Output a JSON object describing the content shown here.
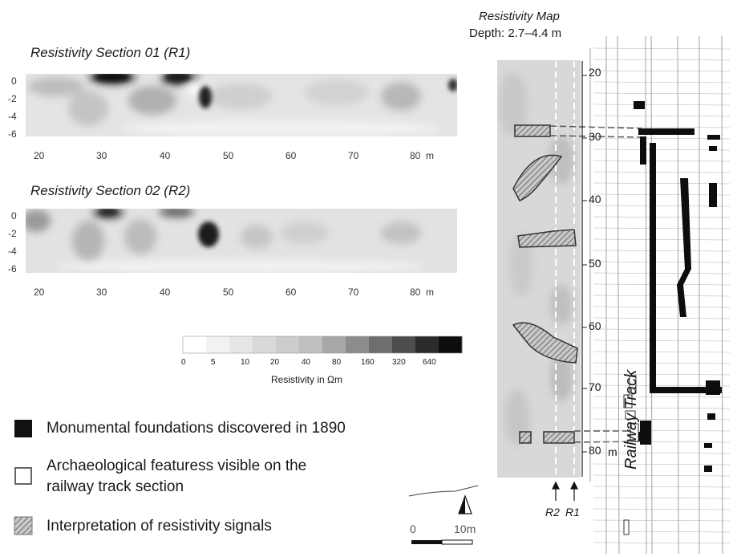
{
  "sections": [
    {
      "title": "Resistivity Section 01 (R1)",
      "y_ticks": [
        "0",
        "-2",
        "-4",
        "-6"
      ],
      "x_ticks": [
        "20",
        "30",
        "40",
        "50",
        "60",
        "70",
        "80"
      ],
      "x_unit": "m"
    },
    {
      "title": "Resistivity Section 02 (R2)",
      "y_ticks": [
        "0",
        "-2",
        "-4",
        "-6"
      ],
      "x_ticks": [
        "20",
        "30",
        "40",
        "50",
        "60",
        "70",
        "80"
      ],
      "x_unit": "m"
    }
  ],
  "color_scale": {
    "ticks": [
      "0",
      "5",
      "10",
      "20",
      "40",
      "80",
      "160",
      "320",
      "640"
    ],
    "label": "Resistivity in Ωm",
    "colors": [
      "#ffffff",
      "#f2f2f2",
      "#e6e6e6",
      "#d9d9d9",
      "#cccccc",
      "#bfbfbf",
      "#a8a8a8",
      "#8c8c8c",
      "#6e6e6e",
      "#4d4d4d",
      "#2b2b2b",
      "#0d0d0d"
    ]
  },
  "map": {
    "title": "Resistivity Map",
    "subtitle": "Depth: 2.7–4.4 m",
    "depth_ticks": [
      "20",
      "30",
      "40",
      "50",
      "60",
      "70",
      "80"
    ],
    "depth_unit": "m",
    "profile_labels": [
      "R2",
      "R1"
    ],
    "track_label": "Railway Track"
  },
  "legend": [
    {
      "key": "foundations",
      "label": "Monumental foundations discovered in 1890"
    },
    {
      "key": "features",
      "label": "Archaeological featuress visible on the",
      "label2": "railway track section"
    },
    {
      "key": "interpretation",
      "label": "Interpretation of resistivity signals"
    }
  ],
  "scale_bar": {
    "start": "0",
    "end": "10m"
  }
}
